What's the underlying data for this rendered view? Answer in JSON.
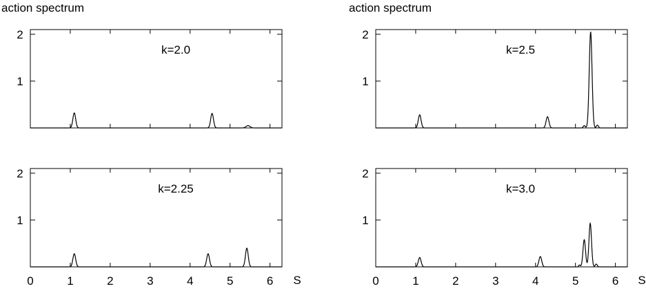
{
  "figure": {
    "left_ylabel": "action spectrum",
    "right_ylabel": "action spectrum",
    "xlabel": "S"
  },
  "chart_data": [
    {
      "type": "line",
      "label": "k=2.0",
      "xlabel": "",
      "ylabel": "action spectrum",
      "xlim": [
        0,
        6.3
      ],
      "ylim": [
        0,
        2.1
      ],
      "yticks": [
        1,
        2
      ],
      "xticks_shown": false,
      "peaks": [
        {
          "x": 1.1,
          "y": 0.32,
          "width": 0.035
        },
        {
          "x": 4.55,
          "y": 0.31,
          "width": 0.035
        },
        {
          "x": 5.45,
          "y": 0.05,
          "width": 0.05
        }
      ]
    },
    {
      "type": "line",
      "label": "k=2.25",
      "xlabel": "S",
      "ylabel": "",
      "xlim": [
        0,
        6.3
      ],
      "ylim": [
        0,
        2.1
      ],
      "yticks": [
        1,
        2
      ],
      "xticks": [
        0,
        1,
        2,
        3,
        4,
        5,
        6
      ],
      "xticks_shown": true,
      "peaks": [
        {
          "x": 1.1,
          "y": 0.28,
          "width": 0.035
        },
        {
          "x": 4.45,
          "y": 0.28,
          "width": 0.035
        },
        {
          "x": 5.42,
          "y": 0.4,
          "width": 0.035
        }
      ]
    },
    {
      "type": "line",
      "label": "k=2.5",
      "xlabel": "",
      "ylabel": "action spectrum",
      "xlim": [
        0,
        6.3
      ],
      "ylim": [
        0,
        2.1
      ],
      "yticks": [
        1,
        2
      ],
      "xticks_shown": false,
      "peaks": [
        {
          "x": 1.1,
          "y": 0.28,
          "width": 0.035
        },
        {
          "x": 4.3,
          "y": 0.24,
          "width": 0.035
        },
        {
          "x": 5.22,
          "y": 0.05,
          "width": 0.025
        },
        {
          "x": 5.38,
          "y": 2.05,
          "width": 0.035
        },
        {
          "x": 5.55,
          "y": 0.06,
          "width": 0.025
        }
      ]
    },
    {
      "type": "line",
      "label": "k=3.0",
      "xlabel": "S",
      "ylabel": "",
      "xlim": [
        0,
        6.3
      ],
      "ylim": [
        0,
        2.1
      ],
      "yticks": [
        1,
        2
      ],
      "xticks": [
        0,
        1,
        2,
        3,
        4,
        5,
        6
      ],
      "xticks_shown": true,
      "peaks": [
        {
          "x": 1.1,
          "y": 0.2,
          "width": 0.035
        },
        {
          "x": 4.12,
          "y": 0.22,
          "width": 0.035
        },
        {
          "x": 5.1,
          "y": 0.04,
          "width": 0.02
        },
        {
          "x": 5.22,
          "y": 0.58,
          "width": 0.032
        },
        {
          "x": 5.37,
          "y": 0.93,
          "width": 0.032
        },
        {
          "x": 5.52,
          "y": 0.06,
          "width": 0.025
        }
      ]
    }
  ]
}
